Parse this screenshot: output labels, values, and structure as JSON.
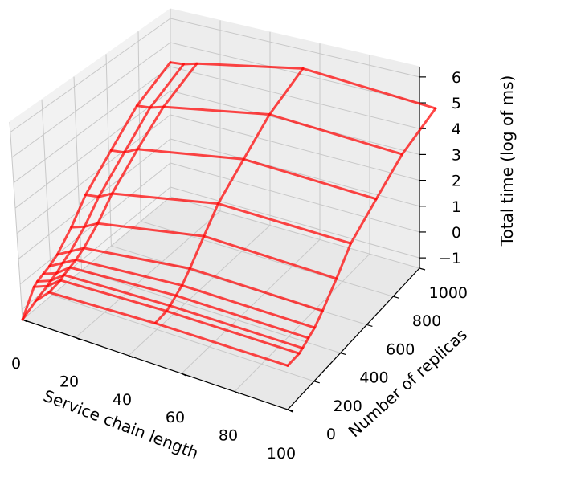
{
  "chart_data": {
    "type": "surface-wireframe",
    "xlabel": "Service chain length",
    "ylabel": "Number of replicas",
    "zlabel": "Total time (log of ms)",
    "xlim": [
      0,
      100
    ],
    "ylim": [
      0,
      1000
    ],
    "zlim": [
      -1,
      6
    ],
    "xticks": [
      0,
      20,
      40,
      60,
      80,
      100
    ],
    "yticks": [
      0,
      200,
      400,
      600,
      800,
      1000
    ],
    "zticks": [
      -1,
      0,
      1,
      2,
      3,
      4,
      5,
      6
    ],
    "ztick_labels": [
      "−1",
      "0",
      "1",
      "2",
      "3",
      "4",
      "5",
      "6"
    ],
    "color": "#ff0000",
    "grid": true,
    "x_lines": [
      {
        "x": 0,
        "y": [
          0,
          1,
          2,
          5,
          10,
          20,
          50,
          100,
          250,
          500,
          1000
        ],
        "z": [
          -1.4,
          -0.5,
          -0.4,
          -0.3,
          -0.2,
          0.0,
          0.6,
          1.4,
          2.3,
          3.2,
          3.8
        ]
      },
      {
        "x": 5,
        "y": [
          0,
          1,
          2,
          5,
          10,
          20,
          50,
          100,
          250,
          500,
          1000
        ],
        "z": [
          -0.5,
          -0.3,
          -0.2,
          -0.1,
          0.1,
          0.3,
          0.8,
          1.5,
          2.4,
          3.3,
          3.9
        ]
      },
      {
        "x": 10,
        "y": [
          0,
          1,
          2,
          5,
          10,
          20,
          50,
          100,
          250,
          500,
          1000
        ],
        "z": [
          0.0,
          0.1,
          0.2,
          0.3,
          0.4,
          0.6,
          1.1,
          1.8,
          2.7,
          3.5,
          4.1
        ]
      },
      {
        "x": 50,
        "y": [
          0,
          1,
          2,
          5,
          10,
          20,
          50,
          100,
          250,
          500,
          1000
        ],
        "z": [
          0.2,
          0.3,
          0.4,
          0.6,
          0.8,
          1.2,
          2.0,
          2.8,
          3.7,
          4.6,
          5.3
        ]
      },
      {
        "x": 100,
        "y": [
          0,
          1,
          2,
          5,
          10,
          20,
          50,
          100,
          250,
          500,
          1000
        ],
        "z": [
          0.3,
          0.4,
          0.5,
          0.7,
          0.9,
          1.3,
          2.1,
          3.0,
          3.9,
          4.8,
          5.5
        ]
      }
    ],
    "y_lines": [
      {
        "y": 0,
        "x": [
          0,
          5,
          10,
          50,
          100
        ],
        "z": [
          -1.4,
          -0.5,
          0.0,
          0.2,
          0.3
        ]
      },
      {
        "y": 1,
        "x": [
          0,
          5,
          10,
          50,
          100
        ],
        "z": [
          -0.5,
          -0.3,
          0.1,
          0.3,
          0.4
        ]
      },
      {
        "y": 2,
        "x": [
          0,
          5,
          10,
          50,
          100
        ],
        "z": [
          -0.4,
          -0.2,
          0.2,
          0.4,
          0.5
        ]
      },
      {
        "y": 5,
        "x": [
          0,
          5,
          10,
          50,
          100
        ],
        "z": [
          -0.3,
          -0.1,
          0.3,
          0.6,
          0.7
        ]
      },
      {
        "y": 10,
        "x": [
          0,
          5,
          10,
          50,
          100
        ],
        "z": [
          -0.2,
          0.1,
          0.4,
          0.8,
          0.9
        ]
      },
      {
        "y": 20,
        "x": [
          0,
          5,
          10,
          50,
          100
        ],
        "z": [
          0.0,
          0.3,
          0.6,
          1.2,
          1.3
        ]
      },
      {
        "y": 50,
        "x": [
          0,
          5,
          10,
          50,
          100
        ],
        "z": [
          0.6,
          0.8,
          1.1,
          2.0,
          2.1
        ]
      },
      {
        "y": 100,
        "x": [
          0,
          5,
          10,
          50,
          100
        ],
        "z": [
          1.4,
          1.5,
          1.8,
          2.8,
          3.0
        ]
      },
      {
        "y": 250,
        "x": [
          0,
          5,
          10,
          50,
          100
        ],
        "z": [
          2.3,
          2.4,
          2.7,
          3.7,
          3.9
        ]
      },
      {
        "y": 500,
        "x": [
          0,
          5,
          10,
          50,
          100
        ],
        "z": [
          3.2,
          3.3,
          3.5,
          4.6,
          4.8
        ]
      },
      {
        "y": 1000,
        "x": [
          0,
          5,
          10,
          50,
          100
        ],
        "z": [
          3.8,
          3.9,
          4.1,
          5.3,
          5.5
        ]
      }
    ]
  }
}
